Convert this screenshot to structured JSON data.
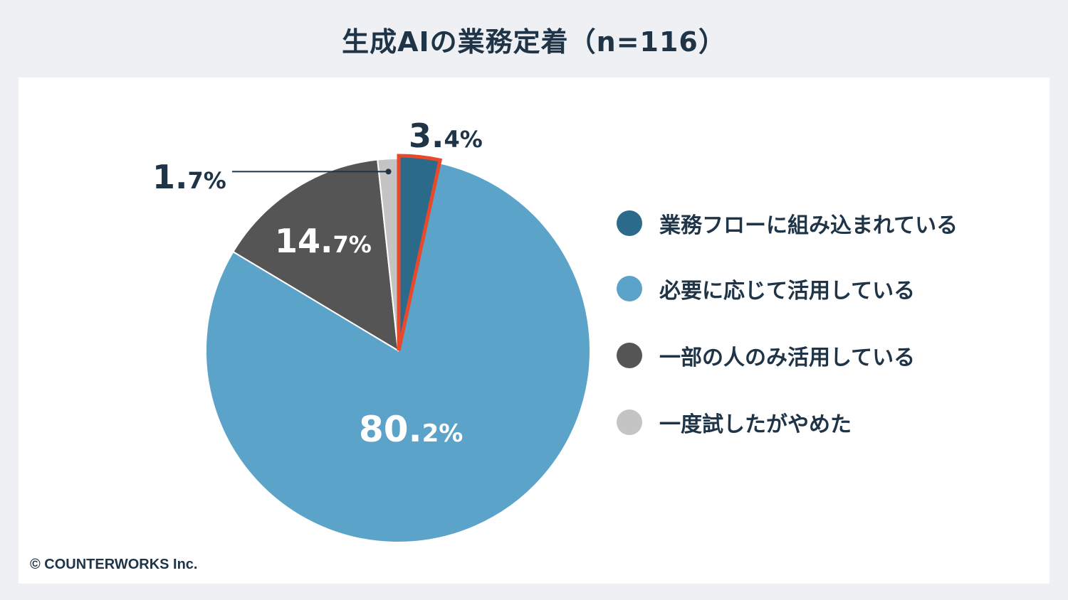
{
  "title": "生成AIの業務定着（n=116）",
  "credit": "© COUNTERWORKS Inc.",
  "chart_data": {
    "type": "pie",
    "slices": [
      {
        "label": "業務フローに組み込まれている",
        "value": 3.4,
        "display_int": "3.",
        "display_dec": "4%",
        "color": "#2c6a8c",
        "highlight": true
      },
      {
        "label": "必要に応じて活用している",
        "value": 80.2,
        "display_int": "80.",
        "display_dec": "2%",
        "color": "#5ba3c9",
        "highlight": false
      },
      {
        "label": "一部の人のみ活用している",
        "value": 14.7,
        "display_int": "14.",
        "display_dec": "7%",
        "color": "#555555",
        "highlight": false
      },
      {
        "label": "一度試したがやめた",
        "value": 1.7,
        "display_int": "1.",
        "display_dec": "7%",
        "color": "#c4c4c4",
        "highlight": false
      }
    ],
    "highlight_color": "#e8492a"
  }
}
